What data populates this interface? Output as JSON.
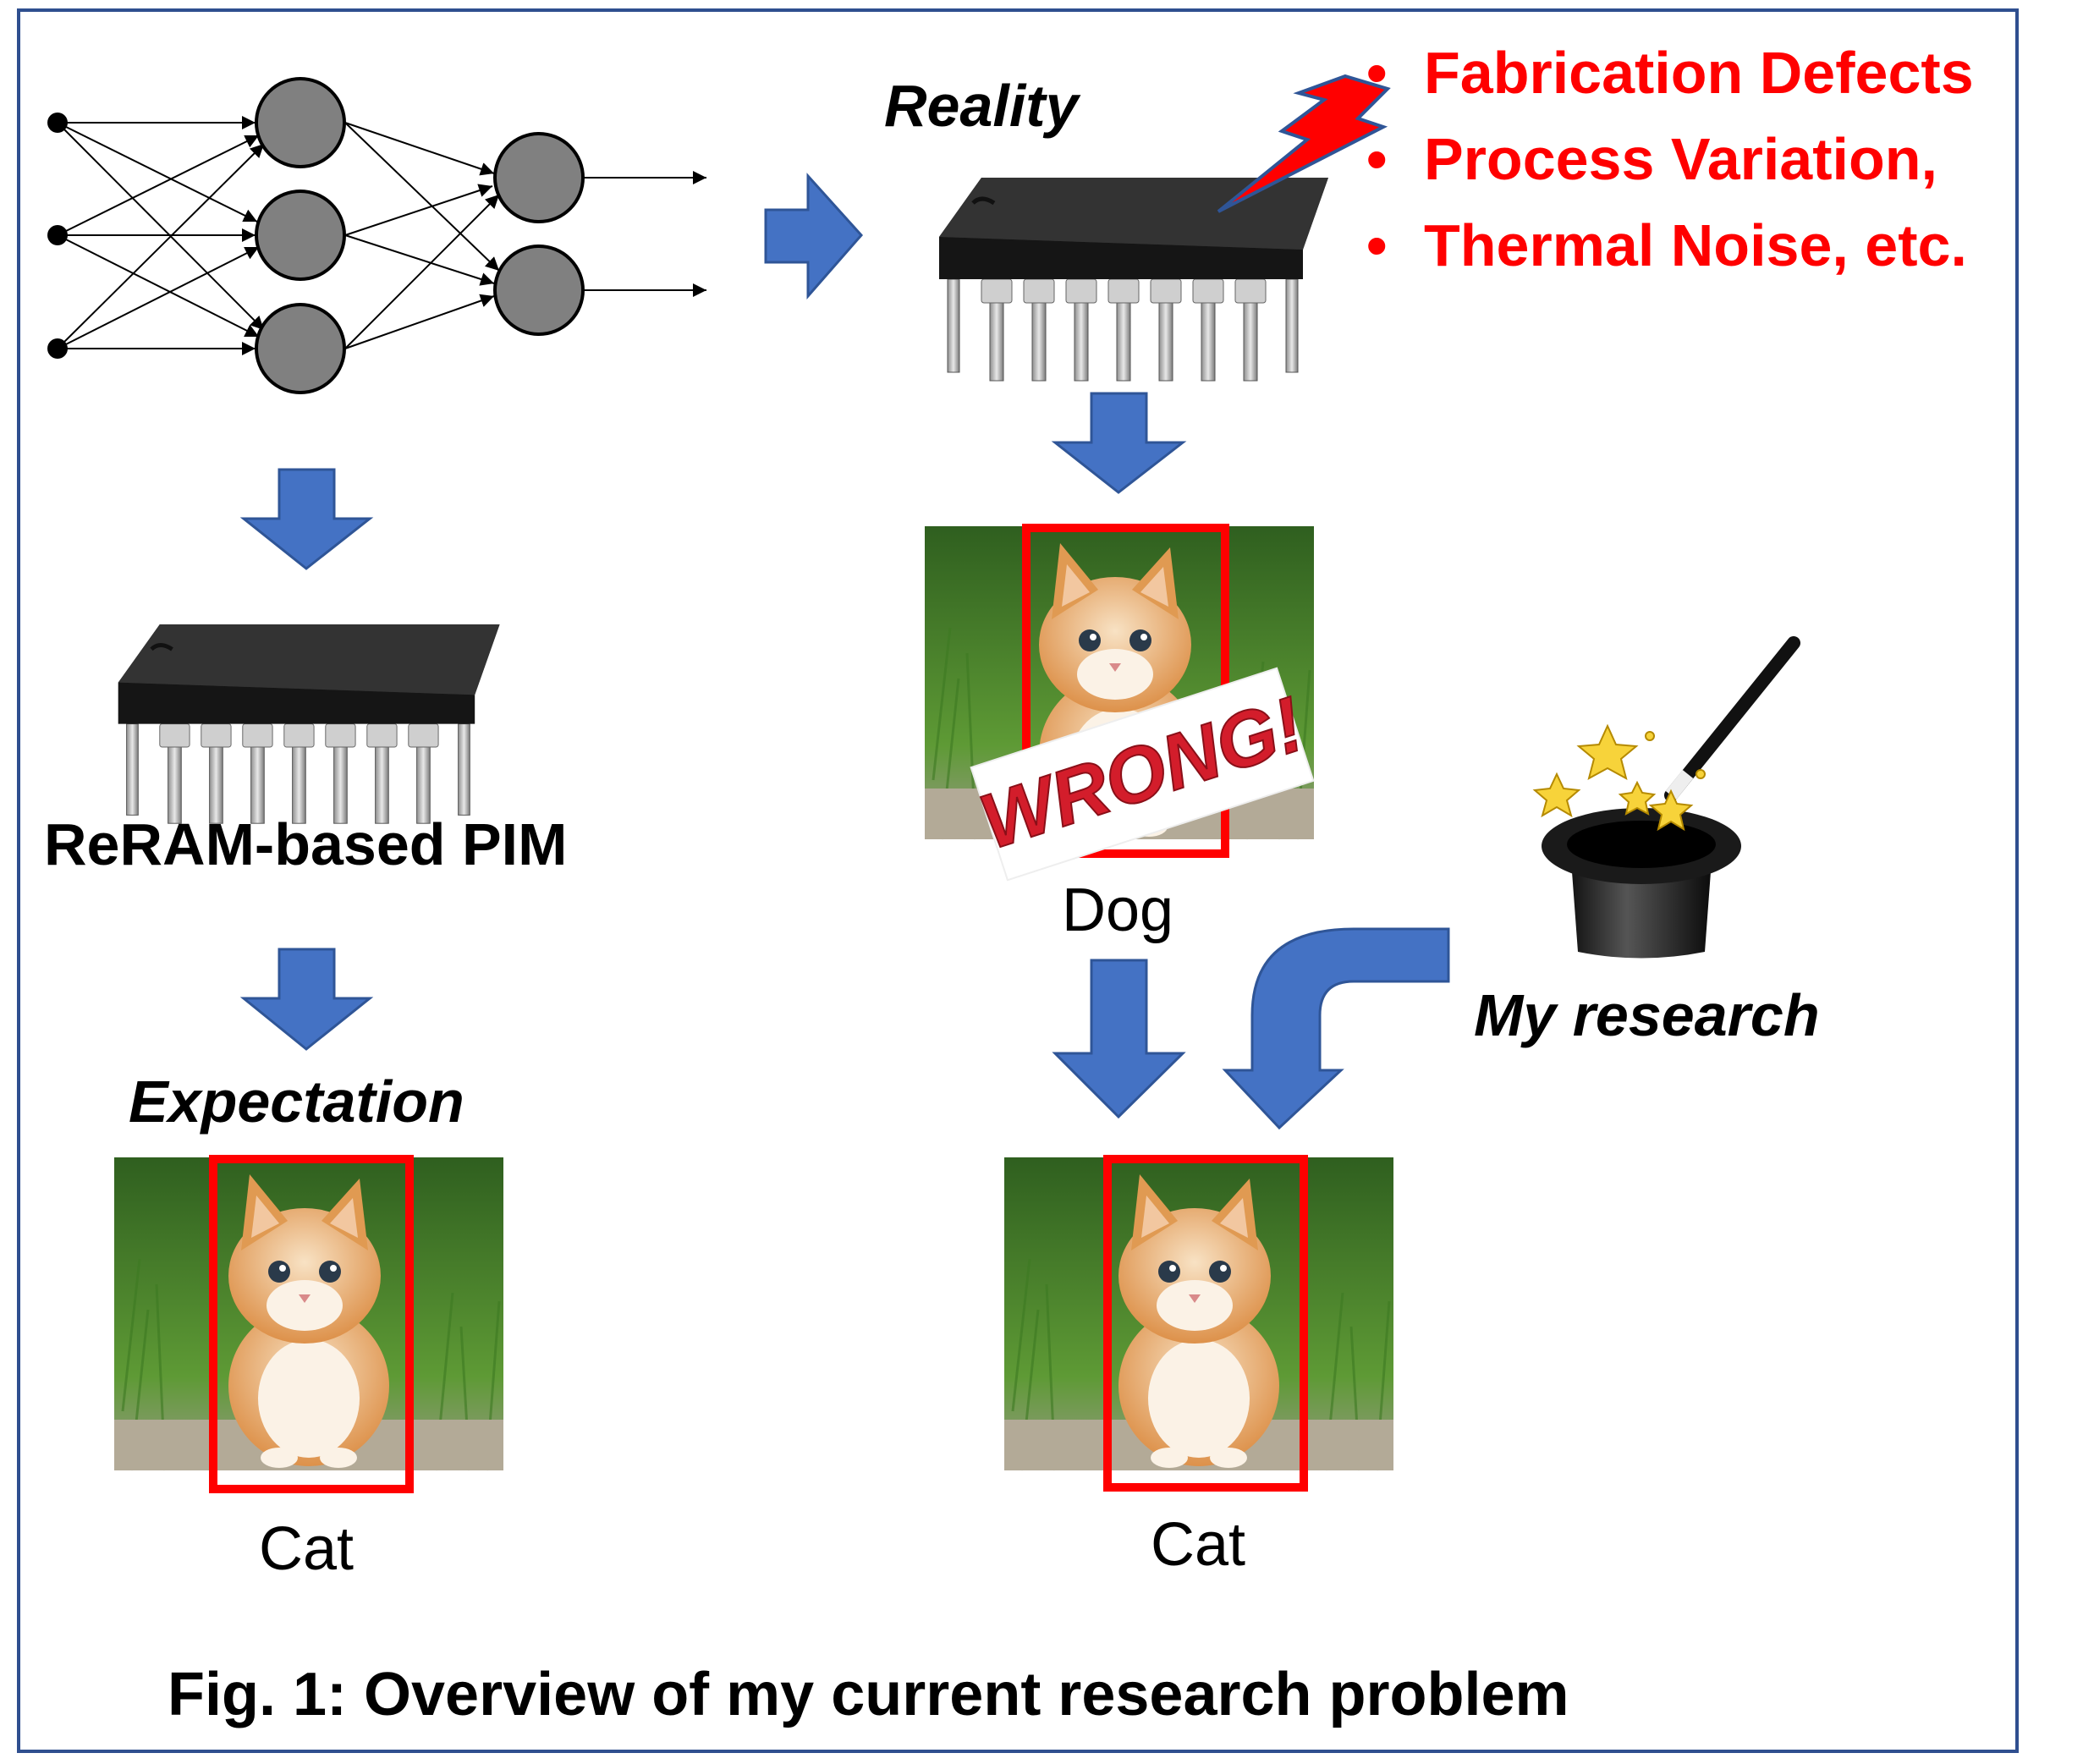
{
  "figure": {
    "caption": "Fig. 1: Overview of my current research problem",
    "chip_left_label": "ReRAM-based PIM",
    "expectation_label": "Expectation",
    "expectation_result": "Cat",
    "reality_label": "Reality",
    "reality_result": "Dog",
    "wrong_stamp": "WRONG!",
    "corrected_result": "Cat",
    "research_label": "My research",
    "noise_sources": [
      "Fabrication Defects",
      "Process Variation,",
      "Thermal Noise, etc."
    ],
    "bullet_glyph": "•"
  },
  "colors": {
    "frame": "#2f4f8f",
    "arrow_fill": "#4472c4",
    "arrow_stroke": "#2f5597",
    "neuron_fill": "#808080",
    "highlight_red": "#ff0000",
    "chip_body": "#2b2b2b",
    "grass": "#4f8a2e",
    "cat_fur": "#e7a15a"
  },
  "icons": {
    "network": "neural-network-icon",
    "chip": "ic-chip-icon",
    "lightning": "lightning-bolt-icon",
    "hat": "magic-hat-icon",
    "wand": "magic-wand-icon",
    "cat_photo": "cat-photo-icon"
  }
}
